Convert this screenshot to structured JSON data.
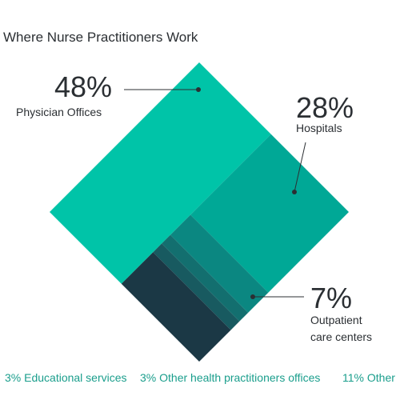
{
  "chart_data": {
    "type": "diamond",
    "title": "Where Nurse Practitioners Work",
    "series": [
      {
        "name": "Physician Offices",
        "values": [
          48
        ],
        "value_labels": [
          "48%"
        ],
        "color": "#00c4a8"
      },
      {
        "name": "Hospitals",
        "values": [
          28
        ],
        "value_labels": [
          "28%"
        ],
        "color": "#00a896"
      },
      {
        "name": "Outpatient care centers",
        "values": [
          7
        ],
        "value_labels": [
          "7%"
        ],
        "color": "#0b8781"
      },
      {
        "name": "Educational services",
        "values": [
          3
        ],
        "value_labels": [
          "3%"
        ],
        "color": "#136f6f"
      },
      {
        "name": "Other health practitioners offices",
        "values": [
          3
        ],
        "value_labels": [
          "3%"
        ],
        "color": "#185a60"
      },
      {
        "name": "Other",
        "values": [
          11
        ],
        "value_labels": [
          "11%"
        ],
        "color": "#1b3845"
      }
    ]
  }
}
